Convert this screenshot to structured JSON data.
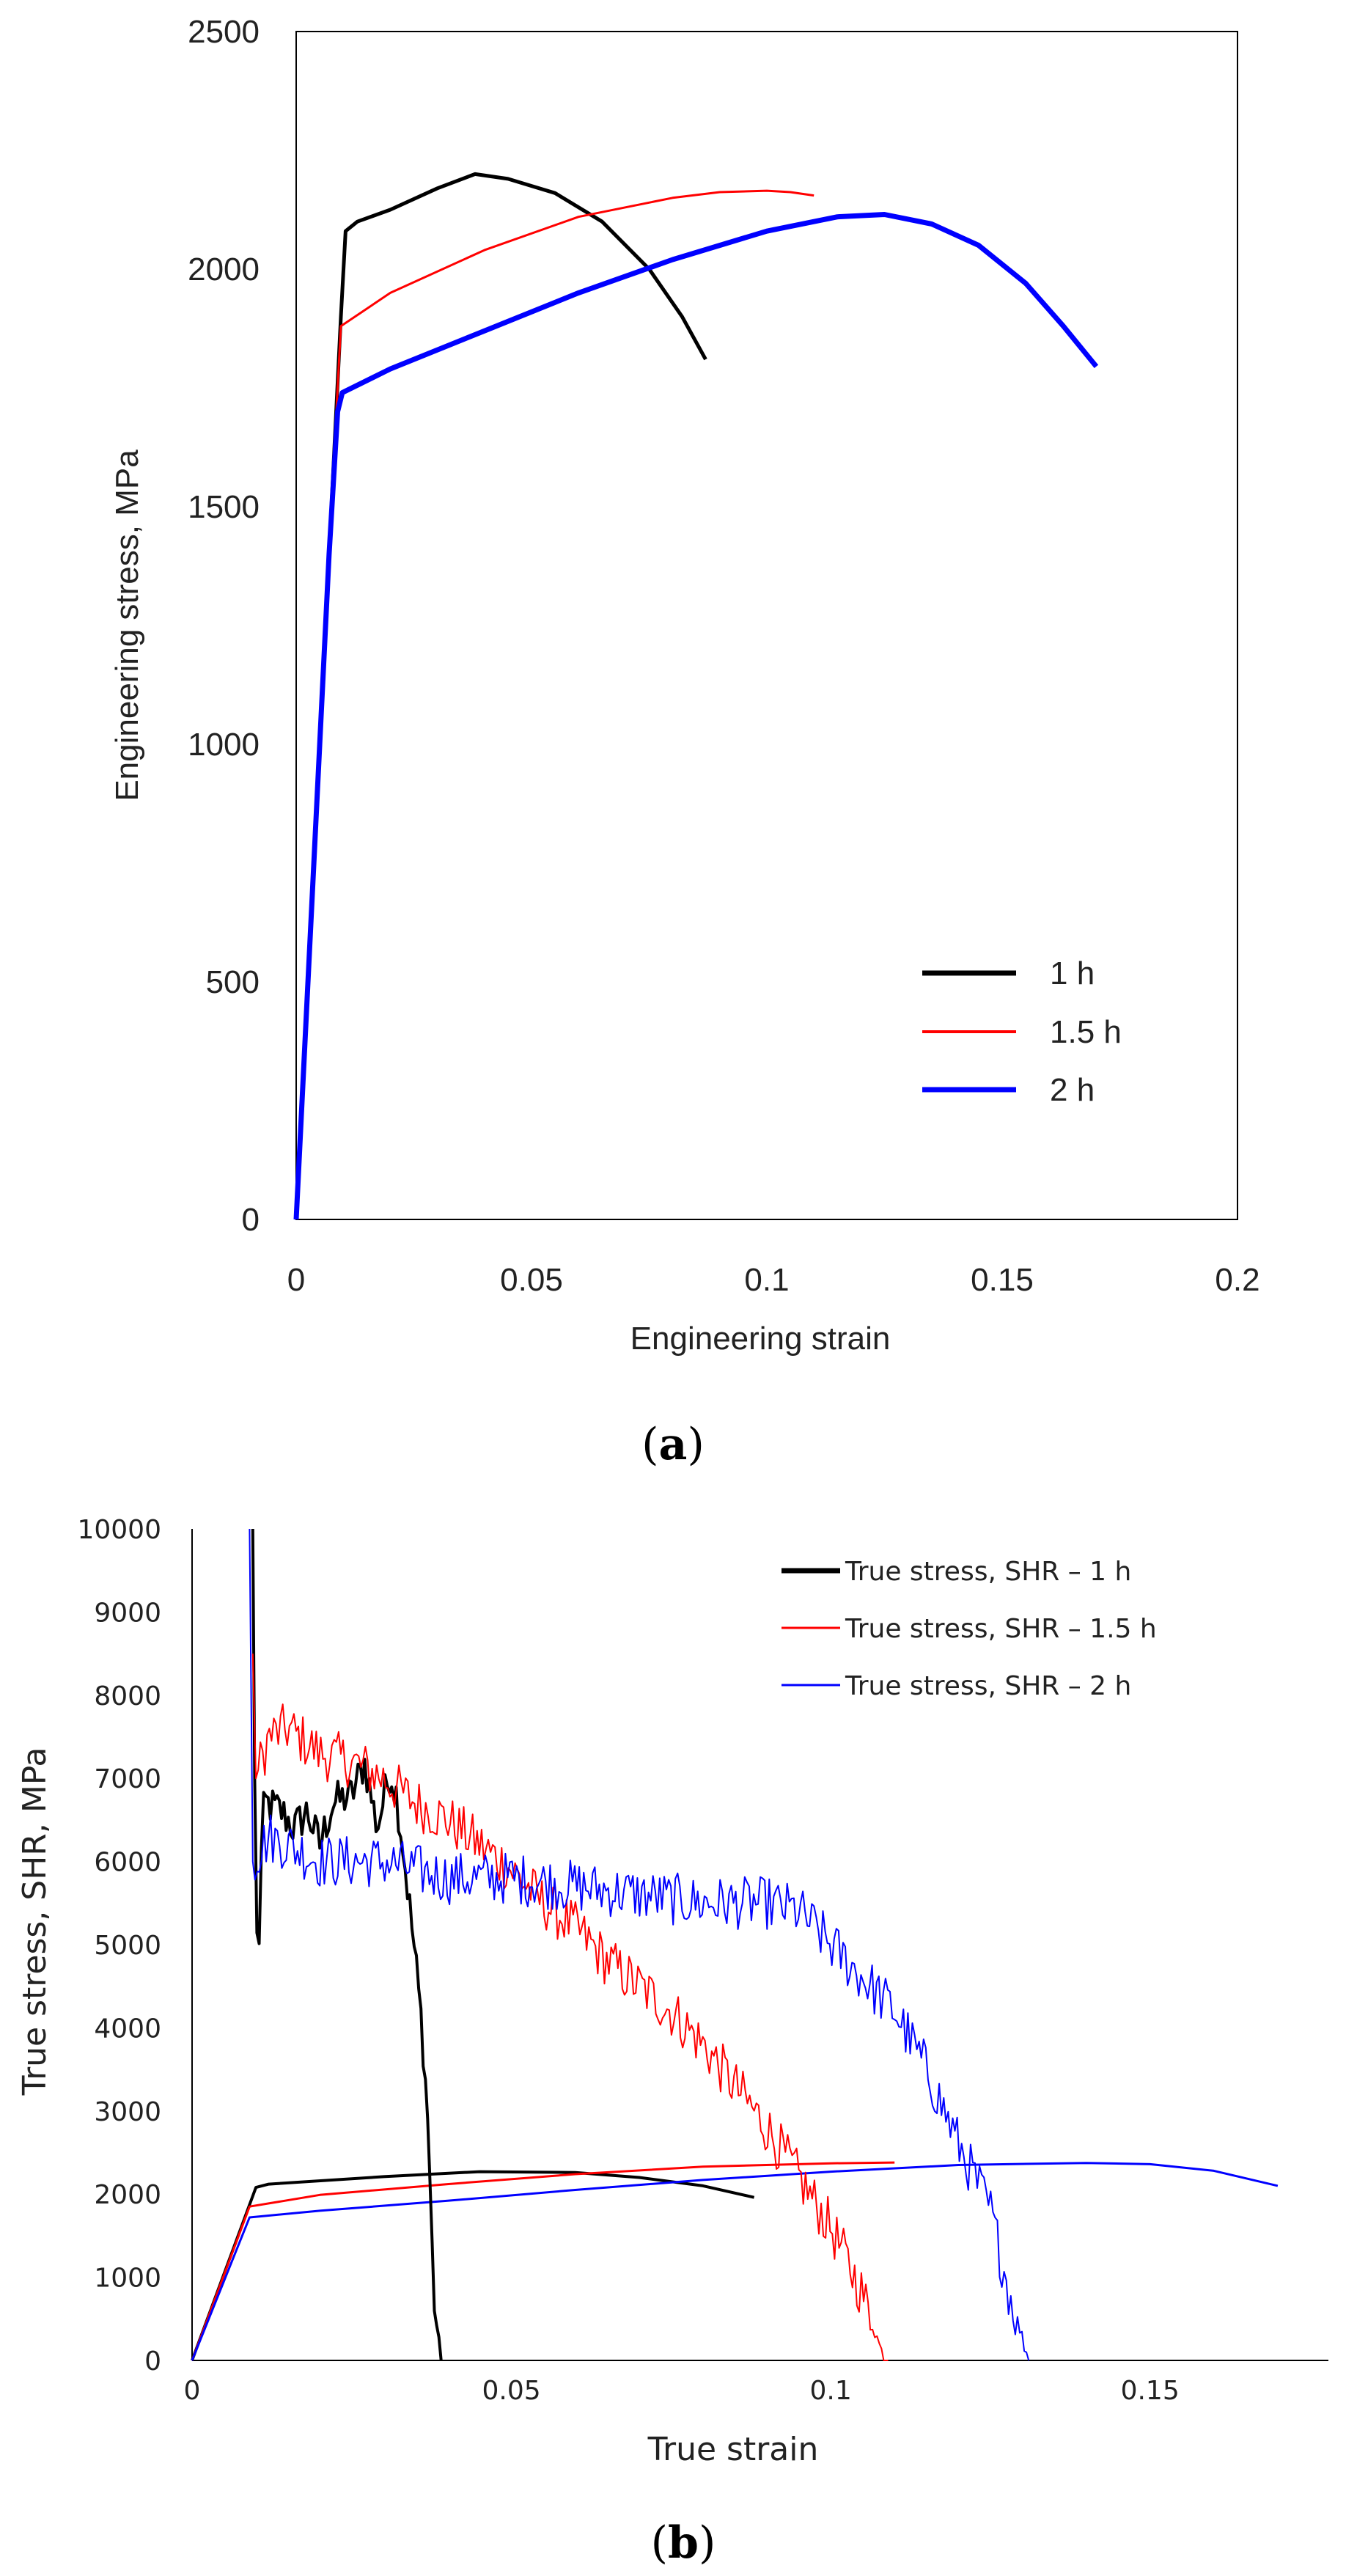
{
  "chart_data": [
    {
      "id": "a",
      "type": "line",
      "caption": "(a)",
      "caption_letter": "a",
      "xlabel": "Engineering strain",
      "ylabel": "Engineering stress, MPa",
      "xlim": [
        0,
        0.2
      ],
      "ylim": [
        0,
        2500
      ],
      "xticks": [
        0,
        0.05,
        0.1,
        0.15,
        0.2
      ],
      "xtick_labels": [
        "0",
        "0.05",
        "0.1",
        "0.15",
        "0.2"
      ],
      "yticks": [
        0,
        500,
        1000,
        1500,
        2000,
        2500
      ],
      "ytick_labels": [
        "0",
        "500",
        "1000",
        "1500",
        "2000",
        "2500"
      ],
      "legend_position": "bottom-right",
      "series": [
        {
          "name": "1 h",
          "color": "#000000",
          "points": [
            [
              0,
              0
            ],
            [
              0.0035,
              700
            ],
            [
              0.007,
              1400
            ],
            [
              0.0095,
              1900
            ],
            [
              0.0105,
              2080
            ],
            [
              0.013,
              2100
            ],
            [
              0.02,
              2125
            ],
            [
              0.03,
              2170
            ],
            [
              0.038,
              2200
            ],
            [
              0.045,
              2190
            ],
            [
              0.055,
              2160
            ],
            [
              0.065,
              2100
            ],
            [
              0.075,
              2000
            ],
            [
              0.082,
              1900
            ],
            [
              0.087,
              1810
            ]
          ]
        },
        {
          "name": "1.5 h",
          "color": "#ff0000",
          "points": [
            [
              0,
              0
            ],
            [
              0.0035,
              700
            ],
            [
              0.007,
              1400
            ],
            [
              0.0088,
              1750
            ],
            [
              0.0095,
              1880
            ],
            [
              0.02,
              1950
            ],
            [
              0.04,
              2040
            ],
            [
              0.06,
              2110
            ],
            [
              0.08,
              2150
            ],
            [
              0.09,
              2162
            ],
            [
              0.1,
              2165
            ],
            [
              0.105,
              2162
            ],
            [
              0.11,
              2155
            ]
          ]
        },
        {
          "name": "2 h",
          "color": "#0000ff",
          "points": [
            [
              0,
              0
            ],
            [
              0.0035,
              700
            ],
            [
              0.007,
              1400
            ],
            [
              0.0088,
              1700
            ],
            [
              0.0098,
              1740
            ],
            [
              0.02,
              1790
            ],
            [
              0.04,
              1870
            ],
            [
              0.06,
              1950
            ],
            [
              0.08,
              2020
            ],
            [
              0.1,
              2080
            ],
            [
              0.115,
              2110
            ],
            [
              0.125,
              2115
            ],
            [
              0.135,
              2095
            ],
            [
              0.145,
              2050
            ],
            [
              0.155,
              1970
            ],
            [
              0.163,
              1880
            ],
            [
              0.17,
              1795
            ]
          ]
        }
      ]
    },
    {
      "id": "b",
      "type": "line",
      "caption": "(b)",
      "caption_letter": "b",
      "xlabel": "True strain",
      "ylabel": "True stress, SHR, MPa",
      "xlim": [
        0,
        0.18
      ],
      "ylim": [
        0,
        10000
      ],
      "xticks": [
        0,
        0.05,
        0.1,
        0.15
      ],
      "xtick_labels": [
        "0",
        "0.05",
        "0.1",
        "0.15"
      ],
      "yticks": [
        0,
        1000,
        2000,
        3000,
        4000,
        5000,
        6000,
        7000,
        8000,
        9000,
        10000
      ],
      "ytick_labels": [
        "0",
        "1000",
        "2000",
        "3000",
        "4000",
        "5000",
        "6000",
        "7000",
        "8000",
        "9000",
        "10000"
      ],
      "legend_position": "top-right",
      "legend": [
        {
          "label": "True stress, SHR – 1 h",
          "color": "#000000"
        },
        {
          "label": "True stress, SHR – 1.5 h",
          "color": "#ff0000"
        },
        {
          "label": "True stress, SHR – 2 h",
          "color": "#0000ff"
        }
      ],
      "series": [
        {
          "name": "True stress – 1 h",
          "color": "#000000",
          "points": [
            [
              0,
              0
            ],
            [
              0.01,
              2080
            ],
            [
              0.012,
              2120
            ],
            [
              0.03,
              2210
            ],
            [
              0.045,
              2270
            ],
            [
              0.06,
              2260
            ],
            [
              0.07,
              2200
            ],
            [
              0.08,
              2100
            ],
            [
              0.088,
              1960
            ]
          ]
        },
        {
          "name": "True stress – 1.5 h",
          "color": "#ff0000",
          "points": [
            [
              0,
              0
            ],
            [
              0.009,
              1850
            ],
            [
              0.02,
              1990
            ],
            [
              0.04,
              2120
            ],
            [
              0.06,
              2240
            ],
            [
              0.08,
              2330
            ],
            [
              0.1,
              2370
            ],
            [
              0.11,
              2380
            ]
          ]
        },
        {
          "name": "True stress – 2 h",
          "color": "#0000ff",
          "points": [
            [
              0,
              0
            ],
            [
              0.009,
              1720
            ],
            [
              0.02,
              1800
            ],
            [
              0.04,
              1920
            ],
            [
              0.06,
              2050
            ],
            [
              0.08,
              2170
            ],
            [
              0.1,
              2270
            ],
            [
              0.12,
              2350
            ],
            [
              0.14,
              2375
            ],
            [
              0.15,
              2360
            ],
            [
              0.16,
              2280
            ],
            [
              0.17,
              2100
            ]
          ]
        },
        {
          "name": "SHR – 1 h",
          "color": "#000000",
          "points": [
            [
              0.0095,
              10000
            ],
            [
              0.0098,
              7000
            ],
            [
              0.01,
              5050
            ],
            [
              0.0105,
              5100
            ],
            [
              0.011,
              6500
            ],
            [
              0.0115,
              6700
            ],
            [
              0.014,
              6600
            ],
            [
              0.016,
              6400
            ],
            [
              0.018,
              6600
            ],
            [
              0.02,
              6200
            ],
            [
              0.022,
              6700
            ],
            [
              0.025,
              6800
            ],
            [
              0.027,
              7200
            ],
            [
              0.029,
              6400
            ],
            [
              0.031,
              7100
            ],
            [
              0.032,
              6800
            ],
            [
              0.033,
              6200
            ],
            [
              0.034,
              5500
            ],
            [
              0.035,
              4800
            ],
            [
              0.036,
              4000
            ],
            [
              0.037,
              2800
            ],
            [
              0.0375,
              1500
            ],
            [
              0.038,
              600
            ],
            [
              0.039,
              0
            ]
          ],
          "noise": 250,
          "width": 4
        },
        {
          "name": "SHR – 1.5 h",
          "color": "#ff0000",
          "points": [
            [
              0.0095,
              8500
            ],
            [
              0.01,
              7000
            ],
            [
              0.012,
              7500
            ],
            [
              0.015,
              7600
            ],
            [
              0.02,
              7300
            ],
            [
              0.025,
              7200
            ],
            [
              0.03,
              7000
            ],
            [
              0.035,
              6700
            ],
            [
              0.04,
              6500
            ],
            [
              0.045,
              6200
            ],
            [
              0.05,
              5900
            ],
            [
              0.055,
              5500
            ],
            [
              0.06,
              5200
            ],
            [
              0.065,
              4800
            ],
            [
              0.07,
              4500
            ],
            [
              0.075,
              4200
            ],
            [
              0.08,
              3800
            ],
            [
              0.085,
              3300
            ],
            [
              0.09,
              2800
            ],
            [
              0.095,
              2200
            ],
            [
              0.1,
              1600
            ],
            [
              0.105,
              800
            ],
            [
              0.108,
              100
            ],
            [
              0.109,
              0
            ]
          ],
          "noise": 320,
          "width": 2
        },
        {
          "name": "SHR – 2 h",
          "color": "#0000ff",
          "points": [
            [
              0.009,
              10000
            ],
            [
              0.0095,
              6000
            ],
            [
              0.012,
              6300
            ],
            [
              0.015,
              6200
            ],
            [
              0.02,
              6000
            ],
            [
              0.03,
              6000
            ],
            [
              0.04,
              5800
            ],
            [
              0.05,
              5800
            ],
            [
              0.06,
              5700
            ],
            [
              0.07,
              5600
            ],
            [
              0.08,
              5500
            ],
            [
              0.09,
              5500
            ],
            [
              0.095,
              5400
            ],
            [
              0.1,
              5000
            ],
            [
              0.105,
              4600
            ],
            [
              0.11,
              4200
            ],
            [
              0.115,
              3500
            ],
            [
              0.12,
              2600
            ],
            [
              0.125,
              1800
            ],
            [
              0.128,
              800
            ],
            [
              0.131,
              0
            ]
          ],
          "noise": 320,
          "width": 2
        }
      ]
    }
  ]
}
